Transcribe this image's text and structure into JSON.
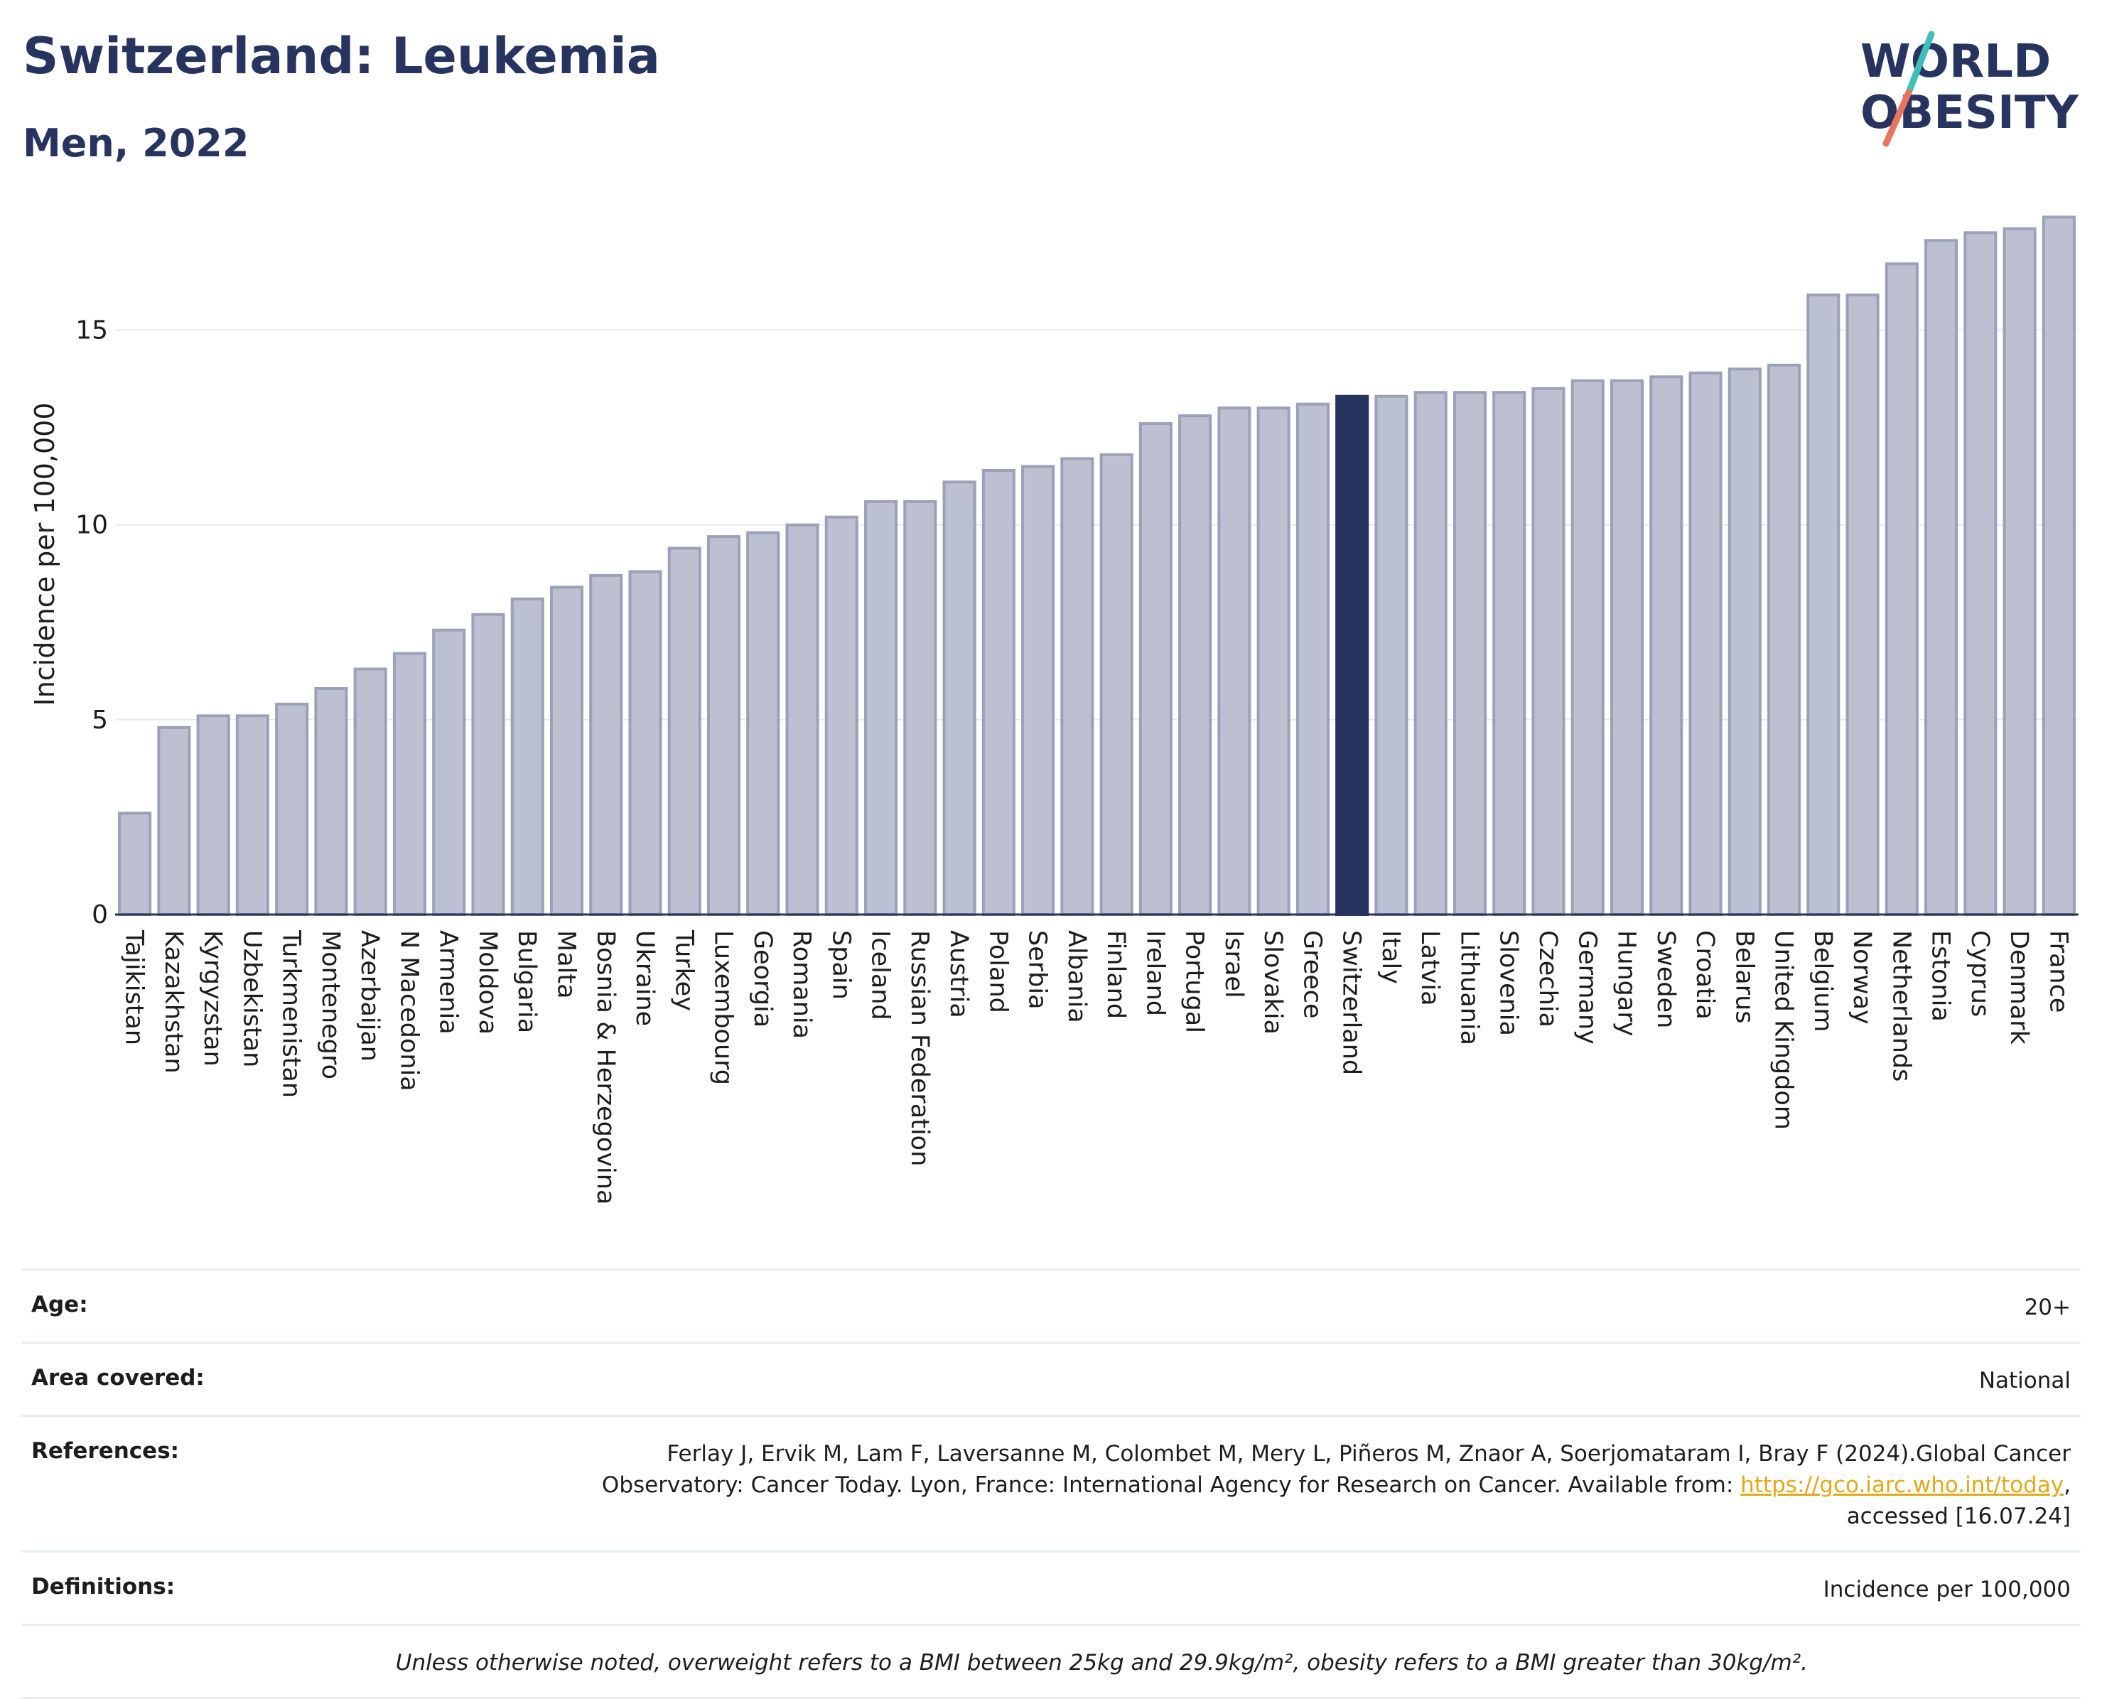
{
  "header": {
    "title": "Switzerland: Leukemia",
    "subtitle": "Men, 2022",
    "logo_line1": "WORLD",
    "logo_line2": "OBESITY"
  },
  "colors": {
    "bar": "#bcc0d1",
    "bar_stroke": "#9ba1b8",
    "highlight": "#283460",
    "grid": "#e6e9f0",
    "logo_teal": "#3fbfb7",
    "logo_coral": "#e8765f"
  },
  "chart_data": {
    "type": "bar",
    "title": "Switzerland: Leukemia",
    "subtitle": "Men, 2022",
    "xlabel": "",
    "ylabel": "Incidence per 100,000",
    "ylim": [
      0,
      18
    ],
    "yticks": [
      0,
      5,
      10,
      15
    ],
    "grid": true,
    "highlight": "Switzerland",
    "categories": [
      "Tajikistan",
      "Kazakhstan",
      "Kyrgyzstan",
      "Uzbekistan",
      "Turkmenistan",
      "Montenegro",
      "Azerbaijan",
      "N Macedonia",
      "Armenia",
      "Moldova",
      "Bulgaria",
      "Malta",
      "Bosnia & Herzegovina",
      "Ukraine",
      "Turkey",
      "Luxembourg",
      "Georgia",
      "Romania",
      "Spain",
      "Iceland",
      "Russian Federation",
      "Austria",
      "Poland",
      "Serbia",
      "Albania",
      "Finland",
      "Ireland",
      "Portugal",
      "Israel",
      "Slovakia",
      "Greece",
      "Switzerland",
      "Italy",
      "Latvia",
      "Lithuania",
      "Slovenia",
      "Czechia",
      "Germany",
      "Hungary",
      "Sweden",
      "Croatia",
      "Belarus",
      "United Kingdom",
      "Belgium",
      "Norway",
      "Netherlands",
      "Estonia",
      "Cyprus",
      "Denmark",
      "France"
    ],
    "values": [
      2.6,
      4.8,
      5.1,
      5.1,
      5.4,
      5.8,
      6.3,
      6.7,
      7.3,
      7.7,
      8.1,
      8.4,
      8.7,
      8.8,
      9.4,
      9.7,
      9.8,
      10.0,
      10.2,
      10.6,
      10.6,
      11.1,
      11.4,
      11.5,
      11.7,
      11.8,
      12.6,
      12.8,
      13.0,
      13.0,
      13.1,
      13.3,
      13.3,
      13.4,
      13.4,
      13.4,
      13.5,
      13.7,
      13.7,
      13.8,
      13.9,
      14.0,
      14.1,
      15.9,
      15.9,
      16.7,
      17.3,
      17.5,
      17.6,
      17.9
    ]
  },
  "info": {
    "age_label": "Age:",
    "age_value": "20+",
    "area_label": "Area covered:",
    "area_value": "National",
    "ref_label": "References:",
    "ref_text_1": "Ferlay J, Ervik M, Lam F, Laversanne M, Colombet M, Mery L, Piñeros M, Znaor A, Soerjomataram I, Bray F (2024).Global Cancer",
    "ref_text_2": "Observatory: Cancer Today. Lyon, France: International Agency for Research on Cancer. Available from: ",
    "ref_link": "https://gco.iarc.who.int/today",
    "ref_text_3": ",",
    "ref_text_4": "accessed [16.07.24]",
    "def_label": "Definitions:",
    "def_value": "Incidence per 100,000",
    "note": "Unless otherwise noted, overweight refers to a BMI between 25kg and 29.9kg/m², obesity refers to a BMI greater than 30kg/m²."
  }
}
